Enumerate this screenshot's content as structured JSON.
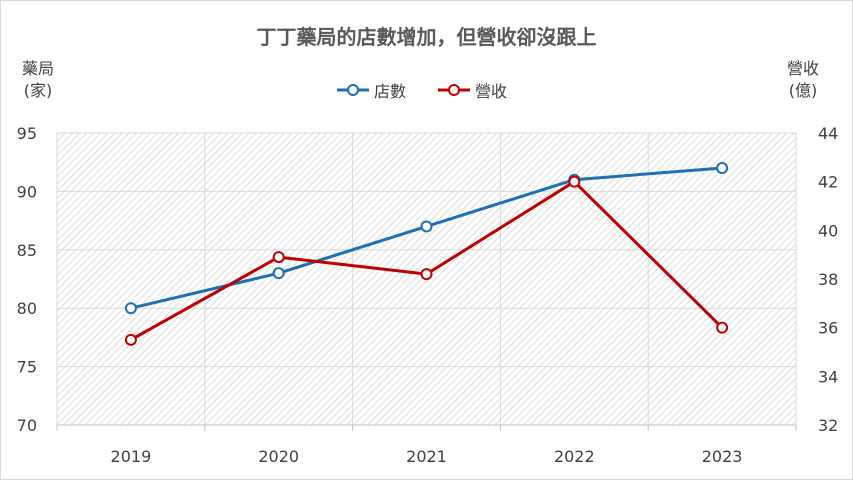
{
  "chart_data": {
    "type": "line",
    "title": "丁丁藥局的店數增加，但營收卻沒跟上",
    "categories": [
      "2019",
      "2020",
      "2021",
      "2022",
      "2023"
    ],
    "left_axis": {
      "label_line1": "藥局",
      "label_line2": "(家)",
      "ylim": [
        70,
        95
      ],
      "ticks": [
        "70",
        "75",
        "80",
        "85",
        "90",
        "95"
      ]
    },
    "right_axis": {
      "label_line1": "營收",
      "label_line2": "(億)",
      "ylim": [
        32,
        44
      ],
      "ticks": [
        "32",
        "34",
        "36",
        "38",
        "40",
        "42",
        "44"
      ]
    },
    "series": [
      {
        "name": "店數",
        "axis": "left",
        "color": "#1f6fb4",
        "values": [
          80,
          83,
          87,
          91,
          92
        ]
      },
      {
        "name": "營收",
        "axis": "right",
        "color": "#c00000",
        "values": [
          35.5,
          38.9,
          38.2,
          42,
          36
        ]
      }
    ],
    "legend_position": "top-center",
    "grid": true,
    "plot_background": "diagonal-hatch"
  }
}
